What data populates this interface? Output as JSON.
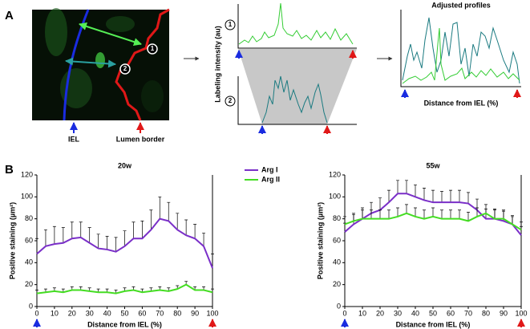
{
  "panel_a": {
    "label": "A",
    "image": {
      "marker_1": "1",
      "marker_2": "2",
      "iel": "IEL",
      "lumen": "Lumen border"
    },
    "profiles": {
      "y_label": "Labeling intensity (au)",
      "marker_1": "1",
      "marker_2": "2"
    },
    "adjusted": {
      "title": "Adjusted profiles",
      "x_label": "Distance from IEL (%)"
    }
  },
  "panel_b_label": "B",
  "chart_data": [
    {
      "type": "line",
      "title": "20w",
      "x_label": "Distance from IEL (%)",
      "y_label": "Positive staining (µm²)",
      "x": [
        0,
        5,
        10,
        15,
        20,
        25,
        30,
        35,
        40,
        45,
        50,
        55,
        60,
        65,
        70,
        75,
        80,
        85,
        90,
        95,
        100
      ],
      "xlim": [
        0,
        100
      ],
      "xticks": [
        0,
        10,
        20,
        30,
        40,
        50,
        60,
        70,
        80,
        90,
        100
      ],
      "ylim": [
        0,
        120
      ],
      "yticks": [
        0,
        20,
        40,
        60,
        80,
        100,
        120
      ],
      "legend": true,
      "series": [
        {
          "name": "Arg I",
          "color": "#7a2fc8",
          "values": [
            48,
            55,
            57,
            58,
            62,
            63,
            58,
            53,
            52,
            50,
            55,
            62,
            62,
            70,
            80,
            78,
            70,
            65,
            62,
            55,
            35
          ],
          "errors": [
            14,
            15,
            16,
            14,
            15,
            14,
            14,
            13,
            12,
            13,
            14,
            15,
            16,
            18,
            20,
            17,
            15,
            14,
            13,
            12,
            13
          ]
        },
        {
          "name": "Arg II",
          "color": "#44dd22",
          "values": [
            12,
            13,
            14,
            13,
            15,
            15,
            14,
            13,
            13,
            12,
            14,
            15,
            13,
            14,
            15,
            14,
            16,
            20,
            15,
            15,
            13
          ],
          "errors": [
            3,
            3,
            3,
            3,
            3,
            3,
            3,
            3,
            3,
            3,
            3,
            3,
            3,
            3,
            3,
            3,
            3,
            3,
            3,
            3,
            3
          ]
        }
      ]
    },
    {
      "type": "line",
      "title": "55w",
      "x_label": "Distance from IEL (%)",
      "y_label": "Positive staining (µm²)",
      "x": [
        0,
        5,
        10,
        15,
        20,
        25,
        30,
        35,
        40,
        45,
        50,
        55,
        60,
        65,
        70,
        75,
        80,
        85,
        90,
        95,
        100
      ],
      "xlim": [
        0,
        100
      ],
      "xticks": [
        0,
        10,
        20,
        30,
        40,
        50,
        60,
        70,
        80,
        90,
        100
      ],
      "ylim": [
        0,
        120
      ],
      "yticks": [
        0,
        20,
        40,
        60,
        80,
        100,
        120
      ],
      "legend": false,
      "series": [
        {
          "name": "Arg I",
          "color": "#7a2fc8",
          "values": [
            68,
            75,
            80,
            85,
            88,
            95,
            103,
            103,
            100,
            97,
            95,
            95,
            95,
            95,
            94,
            88,
            80,
            80,
            78,
            75,
            65
          ],
          "errors": [
            8,
            9,
            10,
            10,
            11,
            11,
            12,
            12,
            11,
            11,
            11,
            10,
            11,
            11,
            10,
            10,
            9,
            9,
            9,
            8,
            8
          ]
        },
        {
          "name": "Arg II",
          "color": "#44dd22",
          "values": [
            75,
            78,
            80,
            80,
            80,
            80,
            82,
            85,
            82,
            80,
            82,
            80,
            80,
            80,
            78,
            82,
            85,
            80,
            80,
            75,
            70
          ],
          "errors": [
            7,
            7,
            8,
            8,
            8,
            8,
            8,
            8,
            8,
            8,
            8,
            8,
            8,
            8,
            8,
            8,
            8,
            8,
            8,
            7,
            7
          ]
        }
      ]
    }
  ]
}
